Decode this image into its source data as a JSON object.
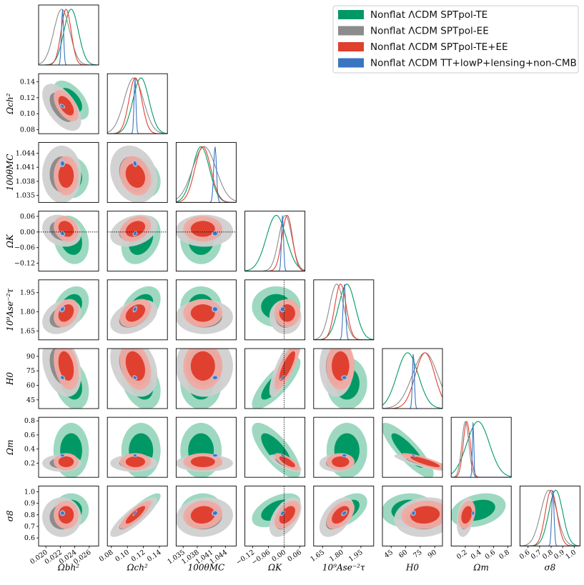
{
  "chart_data": {
    "type": "corner",
    "params": [
      {
        "key": "omega_b",
        "label": "Ωbh²",
        "ticks": [
          0.02,
          0.022,
          0.024,
          0.026
        ],
        "tick_labels": [
          "0.020",
          "0.022",
          "0.024",
          "0.026"
        ],
        "range": [
          0.019,
          0.0273
        ]
      },
      {
        "key": "omega_c",
        "label": "Ωch²",
        "ticks": [
          0.08,
          0.1,
          0.12,
          0.14
        ],
        "tick_labels": [
          "0.08",
          "0.10",
          "0.12",
          "0.14"
        ],
        "range": [
          0.075,
          0.15
        ]
      },
      {
        "key": "theta",
        "label": "100θMC",
        "ticks": [
          1.035,
          1.038,
          1.041,
          1.044
        ],
        "tick_labels": [
          "1.035",
          "1.038",
          "1.041",
          "1.044"
        ],
        "range": [
          1.0335,
          1.0463
        ]
      },
      {
        "key": "omega_k",
        "label": "ΩK",
        "ticks": [
          -0.12,
          -0.06,
          0.0,
          0.06
        ],
        "tick_labels": [
          "−0.12",
          "−0.06",
          "0.00",
          "0.06"
        ],
        "range": [
          -0.15,
          0.08
        ]
      },
      {
        "key": "as",
        "label": "10⁹Ase⁻²τ",
        "ticks": [
          1.65,
          1.8,
          1.95
        ],
        "tick_labels": [
          "1.65",
          "1.80",
          "1.95"
        ],
        "range": [
          1.58,
          2.05
        ]
      },
      {
        "key": "h0",
        "label": "H0",
        "ticks": [
          45,
          60,
          75,
          90
        ],
        "tick_labels": [
          "45",
          "60",
          "75",
          "90"
        ],
        "range": [
          36,
          98
        ]
      },
      {
        "key": "om",
        "label": "Ωm",
        "ticks": [
          0.2,
          0.4,
          0.6,
          0.8
        ],
        "tick_labels": [
          "0.2",
          "0.4",
          "0.6",
          "0.8"
        ],
        "range": [
          0.0,
          0.85
        ]
      },
      {
        "key": "s8",
        "label": "σ8",
        "ticks": [
          0.6,
          0.7,
          0.8,
          0.9,
          1.0
        ],
        "tick_labels": [
          "0.6",
          "0.7",
          "0.8",
          "0.9",
          "1.0"
        ],
        "range": [
          0.53,
          1.05
        ]
      }
    ],
    "series": [
      {
        "name": "Nonflat ΛCDM SPTpol-TE",
        "color": "#009966",
        "light": "#99d6bd",
        "means": [
          0.0235,
          0.117,
          1.0388,
          -0.03,
          1.84,
          62,
          0.38,
          0.84
        ],
        "sigmas": [
          0.001,
          0.01,
          0.0018,
          0.038,
          0.065,
          11,
          0.16,
          0.06
        ],
        "dashed_line": false
      },
      {
        "name": "Nonflat ΛCDM SPTpol-EE",
        "color": "#8c8c8c",
        "light": "#d0d0d0",
        "means": [
          0.0222,
          0.108,
          1.0395,
          0.005,
          1.76,
          80,
          0.2,
          0.78
        ],
        "sigmas": [
          0.0011,
          0.012,
          0.0025,
          0.025,
          0.055,
          13,
          0.05,
          0.07
        ],
        "dashed_line": false
      },
      {
        "name": "Nonflat ΛCDM SPTpol-TE+EE",
        "color": "#e04030",
        "light": "#f0aaa2",
        "means": [
          0.0228,
          0.11,
          1.0392,
          0.012,
          1.79,
          80,
          0.22,
          0.8
        ],
        "sigmas": [
          0.0007,
          0.008,
          0.0017,
          0.02,
          0.045,
          10,
          0.05,
          0.05
        ],
        "dashed_line": false
      },
      {
        "name": "Nonflat ΛCDM TT+lowP+lensing+non-CMB",
        "color": "#3a75c0",
        "light": "#a3c4ea",
        "means": [
          0.0223,
          0.1095,
          1.0418,
          -0.006,
          1.82,
          68,
          0.31,
          0.815
        ],
        "sigmas": [
          0.00015,
          0.0012,
          0.0003,
          0.004,
          0.01,
          1.0,
          0.01,
          0.01
        ],
        "dashed_line": false
      }
    ],
    "reference_lines": {
      "omega_k": 0.0
    },
    "legend_location": "top-right",
    "grid": false
  }
}
